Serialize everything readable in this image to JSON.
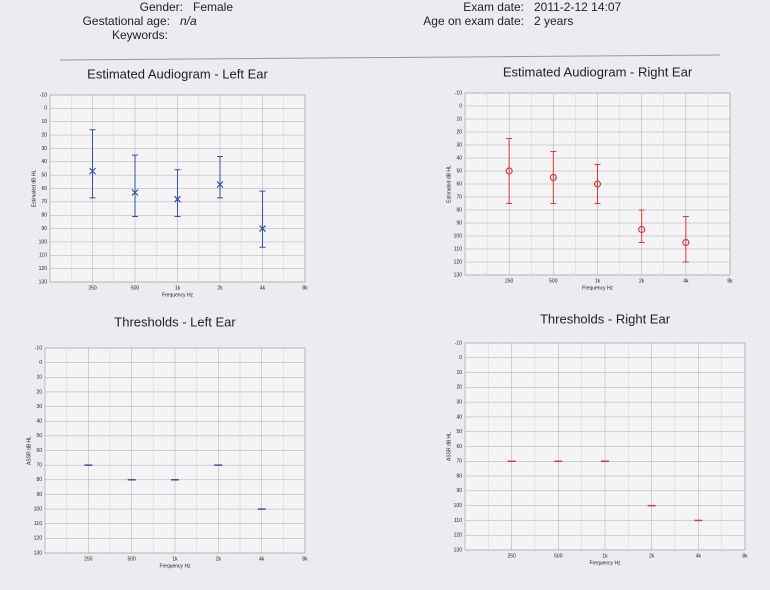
{
  "header": {
    "gender_label": "Gender:",
    "gender": "Female",
    "gestational_label": "Gestational age:",
    "gestational": "n/a",
    "keywords_label": "Keywords:",
    "exam_date_label": "Exam date:",
    "exam_date": "2011-2-12 14:07",
    "age_label": "Age on exam date:",
    "age": "2 years"
  },
  "chart_data": [
    {
      "type": "errorbar",
      "title": "Estimated Audiogram - Left Ear",
      "x_label": "Frequency Hz",
      "y_label": "Estimated dB HL",
      "categories": [
        "250",
        "500",
        "1k",
        "2k",
        "4k",
        "8k"
      ],
      "color": "#3a4fa0",
      "marker": "x",
      "values": [
        47,
        63,
        68,
        57,
        90,
        null
      ],
      "lower": [
        16,
        35,
        46,
        36,
        62,
        null
      ],
      "upper": [
        67,
        81,
        81,
        67,
        104,
        null
      ],
      "ylim": [
        -10,
        130
      ],
      "yticks": [
        -10,
        0,
        10,
        20,
        30,
        40,
        50,
        60,
        70,
        80,
        90,
        100,
        110,
        120,
        130
      ],
      "grid": true
    },
    {
      "type": "errorbar",
      "title": "Estimated Audiogram - Right Ear",
      "x_label": "Frequency Hz",
      "y_label": "Estimated dB HL",
      "categories": [
        "250",
        "500",
        "1k",
        "2k",
        "4k",
        "8k"
      ],
      "color": "#d43c3c",
      "marker": "o",
      "values": [
        50,
        55,
        60,
        95,
        105,
        null
      ],
      "lower": [
        25,
        35,
        45,
        80,
        85,
        null
      ],
      "upper": [
        75,
        75,
        75,
        105,
        120,
        null
      ],
      "ylim": [
        -10,
        130
      ],
      "yticks": [
        -10,
        0,
        10,
        20,
        30,
        40,
        50,
        60,
        70,
        80,
        90,
        100,
        110,
        120,
        130
      ],
      "grid": true
    },
    {
      "type": "point",
      "title": "Thresholds - Left Ear",
      "x_label": "Frequency Hz",
      "y_label": "ASSR dB HL",
      "categories": [
        "250",
        "500",
        "1k",
        "2k",
        "4k",
        "8k"
      ],
      "color": "#3a4fa0",
      "marker": "dash",
      "values": [
        70,
        80,
        80,
        70,
        100,
        null
      ],
      "ylim": [
        -10,
        130
      ],
      "yticks": [
        -10,
        0,
        10,
        20,
        30,
        40,
        50,
        60,
        70,
        80,
        90,
        100,
        110,
        120,
        130
      ],
      "grid": true
    },
    {
      "type": "point",
      "title": "Thresholds - Right Ear",
      "x_label": "Frequency Hz",
      "y_label": "ASSR dB HL",
      "categories": [
        "250",
        "500",
        "1k",
        "2k",
        "4k",
        "8k"
      ],
      "color": "#d43c3c",
      "marker": "dash",
      "values": [
        70,
        70,
        70,
        100,
        110,
        null
      ],
      "ylim": [
        -10,
        130
      ],
      "yticks": [
        -10,
        0,
        10,
        20,
        30,
        40,
        50,
        60,
        70,
        80,
        90,
        100,
        110,
        120,
        130
      ],
      "grid": true
    }
  ]
}
